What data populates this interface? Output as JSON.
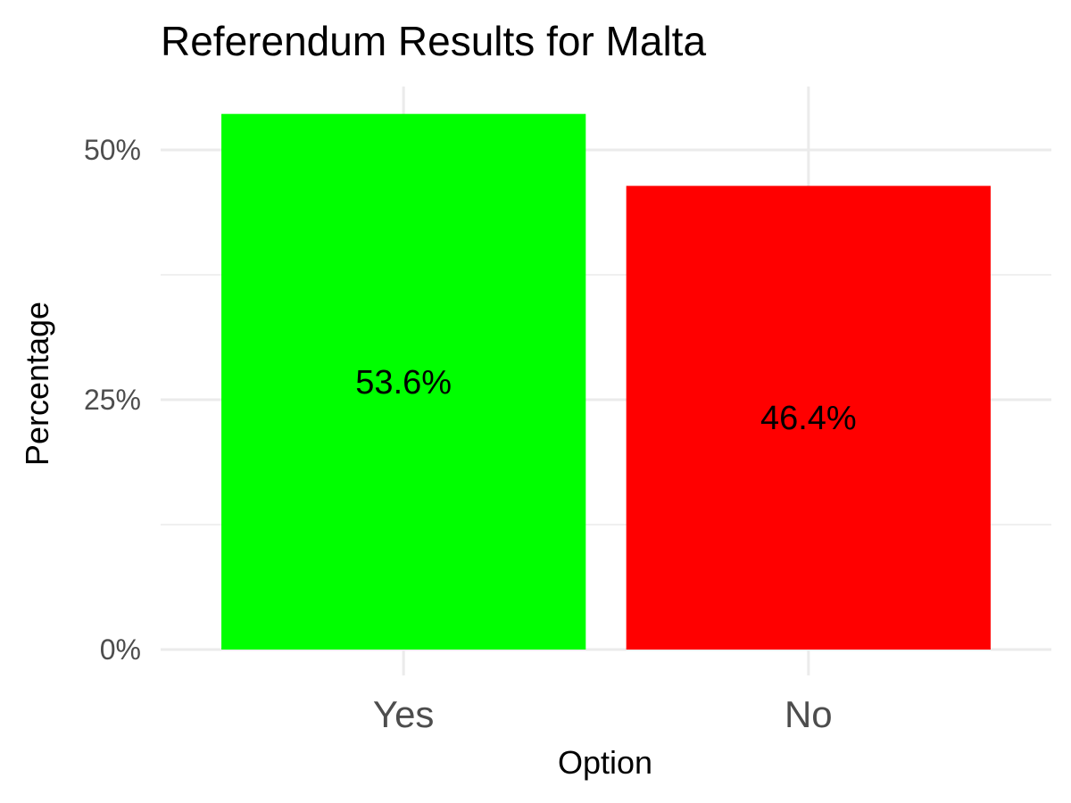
{
  "chart_data": {
    "type": "bar",
    "title": "Referendum Results for Malta",
    "xlabel": "Option",
    "ylabel": "Percentage",
    "categories": [
      "Yes",
      "No"
    ],
    "values": [
      53.6,
      46.4
    ],
    "labels": [
      "53.6%",
      "46.4%"
    ],
    "colors": [
      "#00ff00",
      "#ff0000"
    ],
    "ylim": [
      0,
      55.3
    ],
    "y_ticks": [
      0,
      25,
      50
    ],
    "y_tick_labels": [
      "0%",
      "25%",
      "50%"
    ],
    "grid": true,
    "legend": "none"
  }
}
